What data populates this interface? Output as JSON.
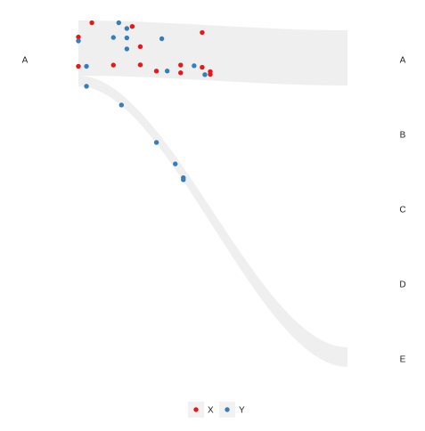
{
  "chart_data": {
    "type": "scatter",
    "title": "",
    "xlabel": "",
    "ylabel": "",
    "grid": false,
    "legend_position": "bottom",
    "left_categories": [
      "A"
    ],
    "right_categories": [
      "A",
      "B",
      "C",
      "D",
      "E"
    ],
    "x_domain": [
      0,
      1
    ],
    "ribbons": [
      {
        "name": "A-A",
        "from": "A",
        "to": "A",
        "color": "#efefef"
      },
      {
        "name": "A-E",
        "from": "A",
        "to": "E",
        "color": "#efefef"
      }
    ],
    "series": [
      {
        "name": "X",
        "color": "#e31a1c",
        "points": [
          {
            "x": 0.0,
            "y": 0.7
          },
          {
            "x": 0.05,
            "y": 0.96
          },
          {
            "x": 0.0,
            "y": 0.17
          },
          {
            "x": 0.13,
            "y": 0.2
          },
          {
            "x": 0.2,
            "y": 0.91
          },
          {
            "x": 0.23,
            "y": 0.55
          },
          {
            "x": 0.23,
            "y": 0.22
          },
          {
            "x": 0.29,
            "y": 0.12
          },
          {
            "x": 0.38,
            "y": 0.25
          },
          {
            "x": 0.38,
            "y": 0.11
          },
          {
            "x": 0.46,
            "y": 0.86
          },
          {
            "x": 0.46,
            "y": 0.23
          },
          {
            "x": 0.49,
            "y": 0.16
          },
          {
            "x": 0.49,
            "y": 0.11
          }
        ]
      },
      {
        "name": "Y",
        "color": "#377eb8",
        "points": [
          {
            "x": 0.0,
            "y": 0.63
          },
          {
            "x": 0.03,
            "y": 0.17
          },
          {
            "x": 0.15,
            "y": 0.97
          },
          {
            "x": 0.13,
            "y": 0.7
          },
          {
            "x": 0.18,
            "y": 0.87
          },
          {
            "x": 0.18,
            "y": 0.7
          },
          {
            "x": 0.18,
            "y": 0.5
          },
          {
            "x": 0.31,
            "y": 0.71
          },
          {
            "x": 0.33,
            "y": 0.13
          },
          {
            "x": 0.43,
            "y": 0.25
          },
          {
            "x": 0.47,
            "y": 0.1
          }
        ]
      },
      {
        "name": "Y",
        "color": "#377eb8",
        "points": [
          {
            "x": 0.03,
            "y": 0.08
          },
          {
            "x": 0.16,
            "y": 0.05
          },
          {
            "x": 0.29,
            "y": 0.08
          },
          {
            "x": 0.36,
            "y": 0.4
          },
          {
            "x": 0.39,
            "y": 0.1
          },
          {
            "x": 0.39,
            "y": 0.25
          }
        ]
      }
    ],
    "legend": [
      {
        "label": "X",
        "color": "#e31a1c"
      },
      {
        "label": "Y",
        "color": "#377eb8"
      }
    ]
  }
}
